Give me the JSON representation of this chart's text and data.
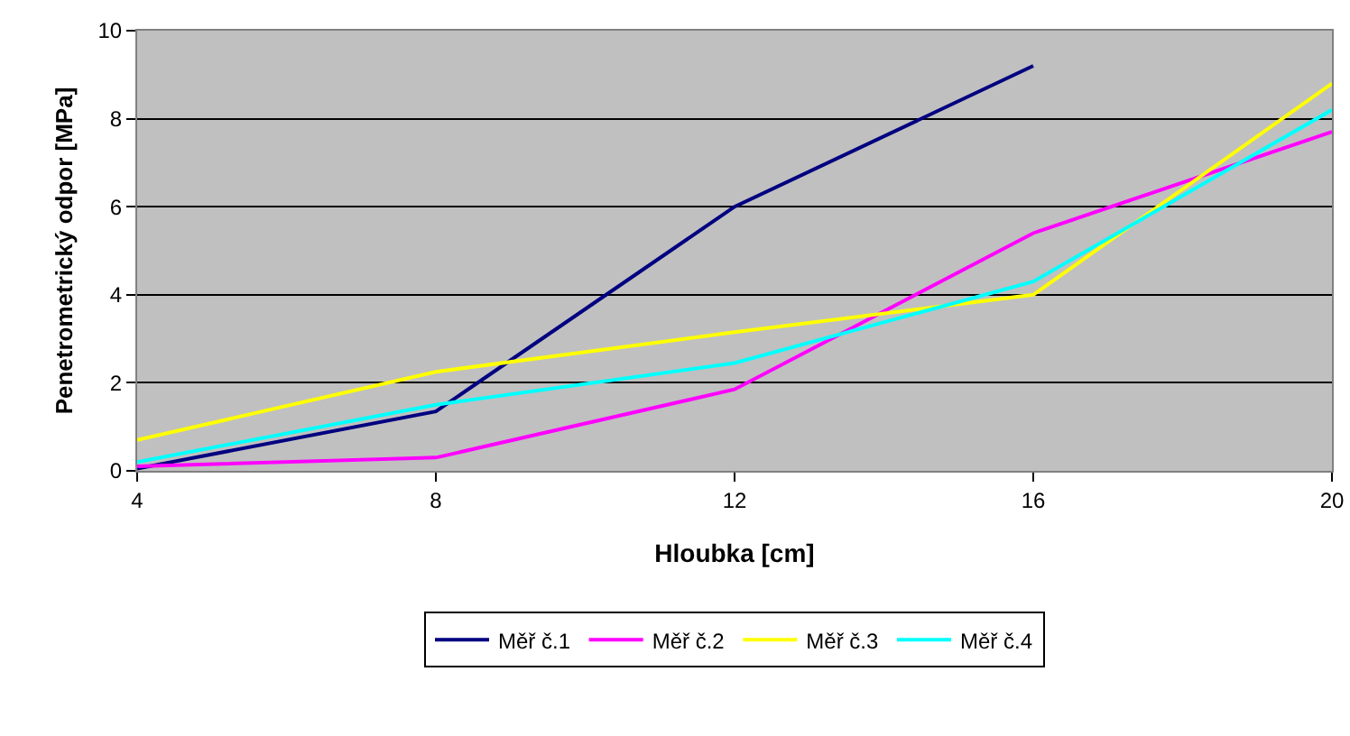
{
  "chart_data": {
    "type": "line",
    "xlabel": "Hloubka [cm]",
    "ylabel": "Penetrometrický odpor [MPa]",
    "x": [
      4,
      8,
      12,
      16,
      20
    ],
    "xlim": [
      4,
      20
    ],
    "xticks": [
      4,
      8,
      12,
      16,
      20
    ],
    "ylim": [
      0,
      10
    ],
    "yticks": [
      0,
      2,
      4,
      6,
      8,
      10
    ],
    "grid": "y",
    "legend": "bottom",
    "marker": "none",
    "line_style": "solid",
    "series": [
      {
        "name": "Měř č.1",
        "color": "#000080",
        "values": [
          0.05,
          1.35,
          6.0,
          9.2,
          null
        ]
      },
      {
        "name": "Měř č.2",
        "color": "#ff00ff",
        "values": [
          0.1,
          0.3,
          1.85,
          5.4,
          7.7
        ]
      },
      {
        "name": "Měř č.3",
        "color": "#ffff00",
        "values": [
          0.7,
          2.25,
          3.15,
          4.0,
          8.8
        ]
      },
      {
        "name": "Měř č.4",
        "color": "#00ffff",
        "values": [
          0.2,
          1.5,
          2.45,
          4.3,
          8.2
        ]
      }
    ]
  }
}
